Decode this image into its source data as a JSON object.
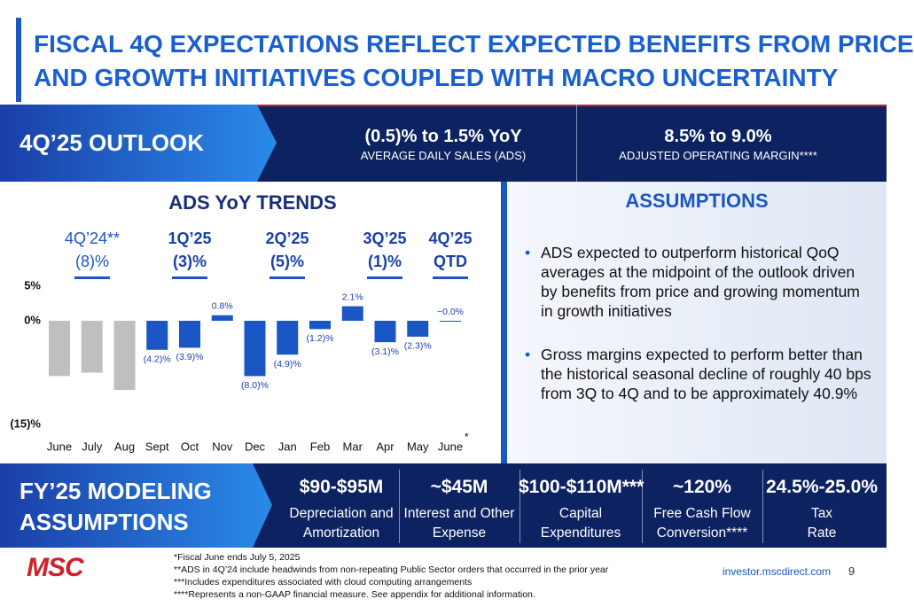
{
  "title": [
    "FISCAL 4Q EXPECTATIONS REFLECT EXPECTED BENEFITS FROM PRICE",
    "AND GROWTH INITIATIVES COUPLED WITH MACRO UNCERTAINTY"
  ],
  "outlook": {
    "label": "4Q’25 OUTLOOK",
    "items": [
      {
        "value": "(0.5)% to 1.5% YoY",
        "caption": "AVERAGE DAILY SALES (ADS)"
      },
      {
        "value": "8.5% to 9.0%",
        "caption": "ADJUSTED OPERATING MARGIN****"
      }
    ]
  },
  "chart_data": {
    "type": "bar",
    "title": "ADS YoY TRENDS",
    "categories": [
      "June",
      "July",
      "Aug",
      "Sept",
      "Oct",
      "Nov",
      "Dec",
      "Jan",
      "Feb",
      "Mar",
      "Apr",
      "May",
      "June"
    ],
    "category_marker": "*",
    "values": [
      -8,
      -7.5,
      -10,
      -4.2,
      -3.9,
      0.8,
      -8,
      -4.9,
      -1.2,
      2.1,
      -3.1,
      -2.3,
      0
    ],
    "value_labels": [
      null,
      null,
      null,
      "(4.2)%",
      "(3.9)%",
      "0.8%",
      "(8.0)%",
      "(4.9)%",
      "(1.2)%",
      "2.1%",
      "(3.1)%",
      "(2.3)%",
      "~0.0%"
    ],
    "bar_colors": [
      "#bfbfbf",
      "#bfbfbf",
      "#bfbfbf",
      "#1a56c4",
      "#1a56c4",
      "#1a56c4",
      "#1a56c4",
      "#1a56c4",
      "#1a56c4",
      "#1a56c4",
      "#1a56c4",
      "#1a56c4",
      "#1a56c4"
    ],
    "ylim": [
      -15,
      5
    ],
    "yticks": [
      {
        "value": 5,
        "label": "5%"
      },
      {
        "value": 0,
        "label": "0%"
      },
      {
        "value": -15,
        "label": "(15)%"
      }
    ],
    "grid": false,
    "quarters": [
      {
        "name": "4Q’24**",
        "label": "(8)%"
      },
      {
        "name": "1Q’25",
        "label": "(3)%"
      },
      {
        "name": "2Q’25",
        "label": "(5)%"
      },
      {
        "name": "3Q’25",
        "label": "(1)%"
      },
      {
        "name": "4Q’25",
        "label": "QTD"
      }
    ]
  },
  "assumptions": {
    "title": "ASSUMPTIONS",
    "bullets": [
      "ADS expected to outperform historical QoQ averages at the midpoint of the outlook driven by benefits from price and growing momentum in growth initiatives",
      "Gross margins expected to perform better than the historical seasonal decline of roughly 40 bps from 3Q to 4Q and to be approximately 40.9%"
    ]
  },
  "fy25": {
    "label": [
      "FY’25 MODELING",
      "ASSUMPTIONS"
    ],
    "items": [
      {
        "value": "$90-$95M",
        "caption": [
          "Depreciation and",
          "Amortization"
        ]
      },
      {
        "value": "~$45M",
        "caption": [
          "Interest and Other",
          "Expense"
        ]
      },
      {
        "value": "$100-$110M***",
        "caption": [
          "Capital",
          "Expenditures"
        ]
      },
      {
        "value": "~120%",
        "caption": [
          "Free Cash Flow",
          "Conversion****"
        ]
      },
      {
        "value": "24.5%-25.0%",
        "caption": [
          "Tax",
          "Rate"
        ]
      }
    ]
  },
  "footer": {
    "logo": "MSC",
    "notes": [
      "*Fiscal June ends July 5, 2025",
      "**ADS in 4Q’24 include headwinds from non-repeating Public Sector orders that occurred in the prior year",
      "***Includes expenditures associated with cloud computing arrangements",
      "****Represents a non-GAAP financial measure. See appendix for additional information."
    ],
    "url": "investor.mscdirect.com",
    "page": "9"
  }
}
